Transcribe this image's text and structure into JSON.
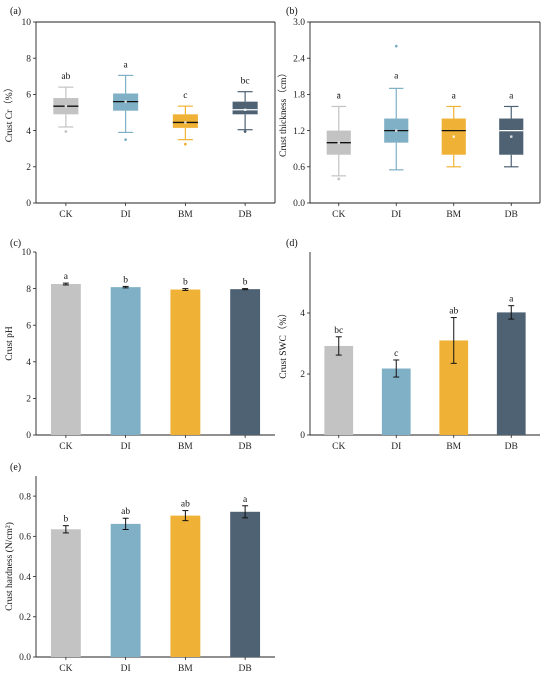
{
  "colors": {
    "CK": "#c3c3c3",
    "DI": "#7fb0c6",
    "BM": "#f0b236",
    "DB": "#4e6274"
  },
  "chart_data": [
    {
      "id": "a",
      "panel_label": "(a)",
      "type": "box",
      "ylabel": "Crust Cr（%）",
      "ylim": [
        0,
        10
      ],
      "yticks": [
        0,
        2,
        4,
        6,
        8,
        10
      ],
      "categories": [
        "CK",
        "DI",
        "BM",
        "DB"
      ],
      "boxes": [
        {
          "q1": 4.9,
          "median": 5.35,
          "q3": 5.8,
          "min": 4.2,
          "max": 6.4,
          "mean": 5.35,
          "outliers": [
            3.95
          ],
          "letter": "ab"
        },
        {
          "q1": 5.1,
          "median": 5.6,
          "q3": 6.05,
          "min": 3.9,
          "max": 7.05,
          "mean": 5.6,
          "outliers": [
            3.5
          ],
          "letter": "a"
        },
        {
          "q1": 4.15,
          "median": 4.45,
          "q3": 4.9,
          "min": 3.5,
          "max": 5.35,
          "mean": 4.45,
          "outliers": [
            3.25
          ],
          "letter": "c"
        },
        {
          "q1": 4.9,
          "median": 5.15,
          "q3": 5.6,
          "min": 4.05,
          "max": 6.15,
          "mean": 5.15,
          "outliers": [
            3.95
          ],
          "letter": "bc"
        }
      ]
    },
    {
      "id": "b",
      "panel_label": "(b)",
      "type": "box",
      "ylabel": "Crust thickness（cm）",
      "ylim": [
        0,
        3.0
      ],
      "yticks": [
        0.0,
        0.6,
        1.2,
        1.8,
        2.4,
        3.0
      ],
      "categories": [
        "CK",
        "DI",
        "BM",
        "DB"
      ],
      "boxes": [
        {
          "q1": 0.8,
          "median": 1.0,
          "q3": 1.2,
          "min": 0.45,
          "max": 1.6,
          "mean": 1.0,
          "outliers": [
            1.8,
            0.4
          ],
          "letter": "a"
        },
        {
          "q1": 1.0,
          "median": 1.2,
          "q3": 1.4,
          "min": 0.55,
          "max": 1.9,
          "mean": 1.2,
          "outliers": [
            2.6
          ],
          "letter": "a"
        },
        {
          "q1": 0.8,
          "median": 1.2,
          "q3": 1.4,
          "min": 0.6,
          "max": 1.6,
          "mean": 1.1,
          "outliers": [],
          "letter": "a"
        },
        {
          "q1": 0.8,
          "median": 1.2,
          "q3": 1.4,
          "min": 0.6,
          "max": 1.6,
          "mean": 1.1,
          "outliers": [],
          "letter": "a"
        }
      ]
    },
    {
      "id": "c",
      "panel_label": "(c)",
      "type": "bar",
      "ylabel": "Crust pH",
      "ylim": [
        0,
        10
      ],
      "yticks": [
        0,
        2,
        4,
        6,
        8,
        10
      ],
      "categories": [
        "CK",
        "DI",
        "BM",
        "DB"
      ],
      "values": [
        8.25,
        8.08,
        7.95,
        7.97
      ],
      "errors": [
        0.05,
        0.04,
        0.05,
        0.03
      ],
      "letters": [
        "a",
        "b",
        "b",
        "b"
      ]
    },
    {
      "id": "d",
      "panel_label": "(d)",
      "type": "bar",
      "ylabel": "Crust SWC（%）",
      "ylim": [
        0,
        6
      ],
      "yticks": [
        0,
        2,
        4
      ],
      "categories": [
        "CK",
        "DI",
        "BM",
        "DB"
      ],
      "values": [
        2.92,
        2.18,
        3.1,
        4.02
      ],
      "errors": [
        0.3,
        0.28,
        0.75,
        0.22
      ],
      "letters": [
        "bc",
        "c",
        "ab",
        "a"
      ]
    },
    {
      "id": "e",
      "panel_label": "(e)",
      "type": "bar",
      "ylabel": "Crust hardness (N/cm²)",
      "ylim": [
        0,
        0.9
      ],
      "yticks": [
        0.0,
        0.2,
        0.4,
        0.6,
        0.8
      ],
      "categories": [
        "CK",
        "DI",
        "BM",
        "DB"
      ],
      "values": [
        0.635,
        0.662,
        0.703,
        0.722
      ],
      "errors": [
        0.018,
        0.028,
        0.025,
        0.03
      ],
      "letters": [
        "b",
        "ab",
        "ab",
        "a"
      ]
    }
  ]
}
